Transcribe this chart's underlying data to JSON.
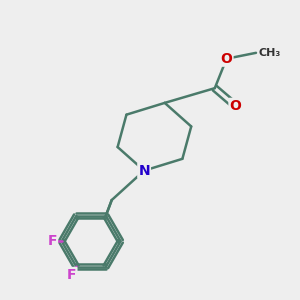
{
  "background_color": "#eeeeee",
  "bond_color": "#4a7a6a",
  "bond_width": 1.8,
  "atom_colors": {
    "N": "#2200cc",
    "O": "#cc0000",
    "F": "#cc44cc",
    "C": "#000000"
  },
  "font_size": 10,
  "fig_size": [
    3.0,
    3.0
  ],
  "dpi": 100
}
